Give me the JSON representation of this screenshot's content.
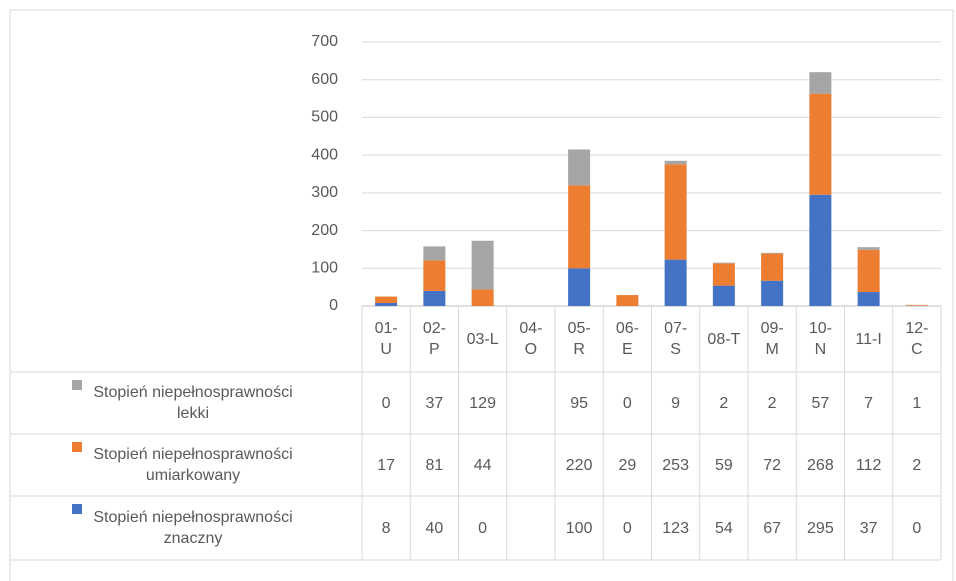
{
  "chart_data": {
    "type": "bar",
    "stacked": true,
    "categories": [
      "01-U",
      "02-P",
      "03-L",
      "04-O",
      "05-R",
      "06-E",
      "07-S",
      "08-T",
      "09-M",
      "10-N",
      "11-I",
      "12-C"
    ],
    "series": [
      {
        "name": "Stopień niepełnosprawności znaczny",
        "color": "#4472c4",
        "values": [
          8,
          40,
          0,
          null,
          100,
          0,
          123,
          54,
          67,
          295,
          37,
          0
        ]
      },
      {
        "name": "Stopień niepełnosprawności umiarkowany",
        "color": "#ed7d31",
        "values": [
          17,
          81,
          44,
          null,
          220,
          29,
          253,
          59,
          72,
          268,
          112,
          2
        ]
      },
      {
        "name": "Stopień niepełnosprawności lekki",
        "color": "#a5a5a5",
        "values": [
          0,
          37,
          129,
          null,
          95,
          0,
          9,
          2,
          2,
          57,
          7,
          1
        ]
      }
    ],
    "ylim": [
      0,
      700
    ],
    "yticks": [
      0,
      100,
      200,
      300,
      400,
      500,
      600,
      700
    ],
    "grid": true
  }
}
